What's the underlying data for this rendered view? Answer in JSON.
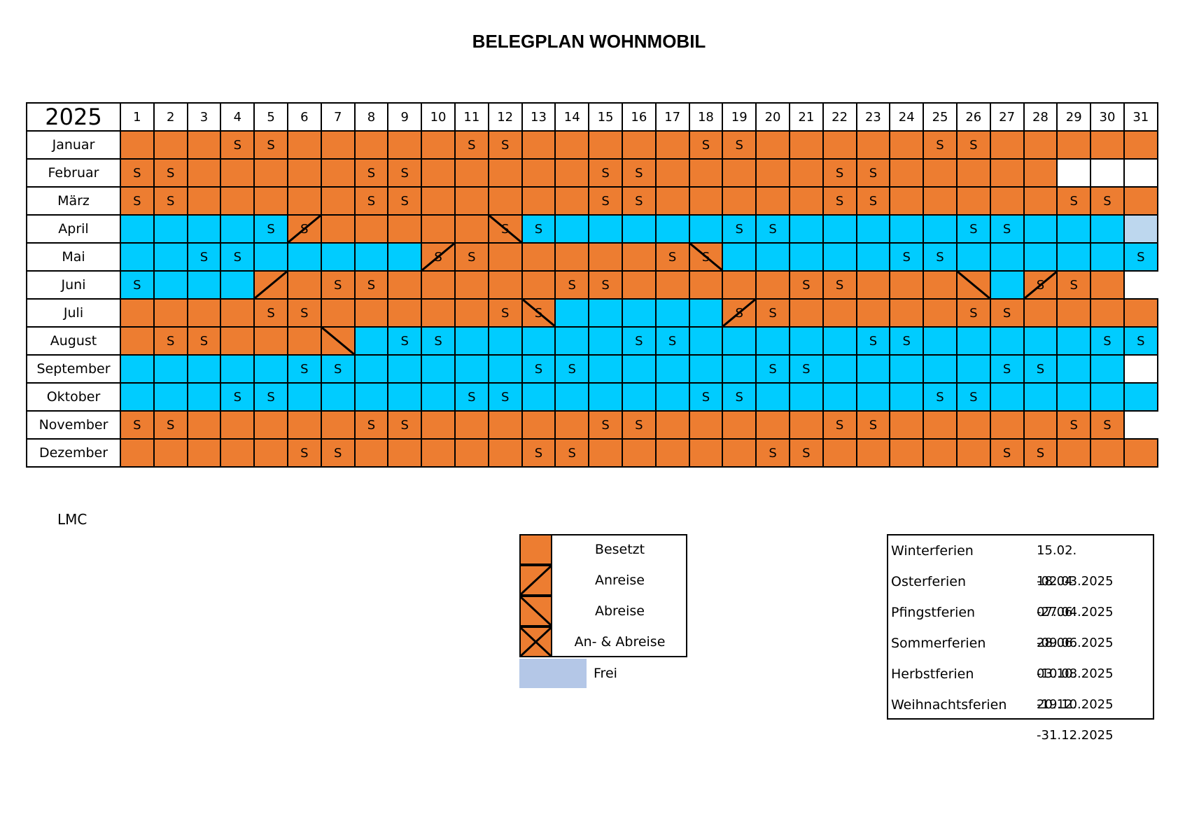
{
  "title": "BELEGPLAN WOHNMOBIL",
  "year": "2025",
  "days": [
    "1",
    "2",
    "3",
    "4",
    "5",
    "6",
    "7",
    "8",
    "9",
    "10",
    "11",
    "12",
    "13",
    "14",
    "15",
    "16",
    "17",
    "18",
    "19",
    "20",
    "21",
    "22",
    "23",
    "24",
    "25",
    "26",
    "27",
    "28",
    "29",
    "30",
    "31"
  ],
  "colors": {
    "occupied": "#ED7D31",
    "booked_blue": "#00CCFF",
    "free_light": "#BDD7EE",
    "empty": "#ffffff"
  },
  "months": [
    {
      "name": "Januar",
      "cells": "OOOOOOOOOOOOOOOOOOOOOOOOOOOOOOO",
      "sat": [
        4,
        5,
        11,
        12,
        18,
        19,
        25,
        26
      ],
      "marks": {}
    },
    {
      "name": "Februar",
      "cells": "OOOOOOOOOOOOOOOOOOOOOOOOOOOOWWW",
      "sat": [
        1,
        2,
        8,
        9,
        15,
        16,
        22,
        23
      ],
      "marks": {}
    },
    {
      "name": "März",
      "cells": "OOOOOOOOOOOOOOOOOOOOOOOOOOOOOOO",
      "sat": [
        1,
        2,
        8,
        9,
        15,
        16,
        22,
        23,
        29,
        30
      ],
      "marks": {}
    },
    {
      "name": "April",
      "cells": "BBBBBOOOOOOOBBBBBBBBBBBBBBBBBBF",
      "sat": [
        5,
        6,
        12,
        13,
        19,
        20,
        26,
        27
      ],
      "marks": {
        "6": "anreise",
        "12": "abreise"
      }
    },
    {
      "name": "Mai",
      "cells": "BBBBBBBBBOOOOOOOOOBBBBBBBBBBBBB",
      "sat": [
        3,
        4,
        10,
        11,
        17,
        18,
        24,
        25,
        31
      ],
      "marks": {
        "10": "anreise",
        "18": "abreise"
      }
    },
    {
      "name": "Juni",
      "cells": "BBBBOOOOOOOOOOOOOOOOOOOOOOBOOON",
      "sat": [
        1,
        7,
        8,
        14,
        15,
        21,
        22,
        28,
        29
      ],
      "marks": {
        "5": "anreise",
        "26": "abreise",
        "28": "anreise"
      }
    },
    {
      "name": "Juli",
      "cells": "OOOOOOOOOOOOOBBBBBOOOOOOOOOOOOO",
      "sat": [
        5,
        6,
        12,
        13,
        19,
        20,
        26,
        27
      ],
      "marks": {
        "13": "abreise",
        "19": "anreise"
      }
    },
    {
      "name": "August",
      "cells": "OOOOOOOBBBBBBBBBBBBBBBBBBBBBBBB",
      "sat": [
        2,
        3,
        9,
        10,
        16,
        17,
        23,
        24,
        30,
        31
      ],
      "marks": {
        "7": "abreise"
      }
    },
    {
      "name": "September",
      "cells": "BBBBBBBBBBBBBBBBBBBBBBBBBBBBBBW",
      "sat": [
        6,
        7,
        13,
        14,
        20,
        21,
        27,
        28
      ],
      "marks": {}
    },
    {
      "name": "Oktober",
      "cells": "BBBBBBBBBBBBBBBBBBBBBBBBBBBBBBB",
      "sat": [
        4,
        5,
        11,
        12,
        18,
        19,
        25,
        26
      ],
      "marks": {}
    },
    {
      "name": "November",
      "cells": "OOOOOOOOOOOOOOOOOOOOOOOOOOOOOON",
      "sat": [
        1,
        2,
        8,
        9,
        15,
        16,
        22,
        23,
        29,
        30
      ],
      "marks": {}
    },
    {
      "name": "Dezember",
      "cells": "OOOOOOOOOOOOOOOOOOOOOOOOOOOOOOO",
      "sat": [
        6,
        7,
        13,
        14,
        20,
        21,
        27,
        28
      ],
      "marks": {}
    }
  ],
  "weekend_marker": "S",
  "footer": "LMC",
  "legend": [
    {
      "label": "Besetzt",
      "mark": "none"
    },
    {
      "label": "Anreise",
      "mark": "anreise"
    },
    {
      "label": "Abreise",
      "mark": "abreise"
    },
    {
      "label": "An- & Abreise",
      "mark": "both"
    }
  ],
  "legend_frei": "Frei",
  "ferien": [
    {
      "name": "Winterferien",
      "dates": "15.02. -02.03.2025"
    },
    {
      "name": "Osterferien",
      "dates": "18.04. -27.04.2025"
    },
    {
      "name": "Pfingstferien",
      "dates": "07.06. -09.06.2025"
    },
    {
      "name": "Sommerferien",
      "dates": "28.06. -10.08.2025"
    },
    {
      "name": "Herbstferien",
      "dates": "03.10. -19.10.2025"
    },
    {
      "name": "Weihnachtsferien",
      "dates": "20.12. -31.12.2025"
    }
  ]
}
